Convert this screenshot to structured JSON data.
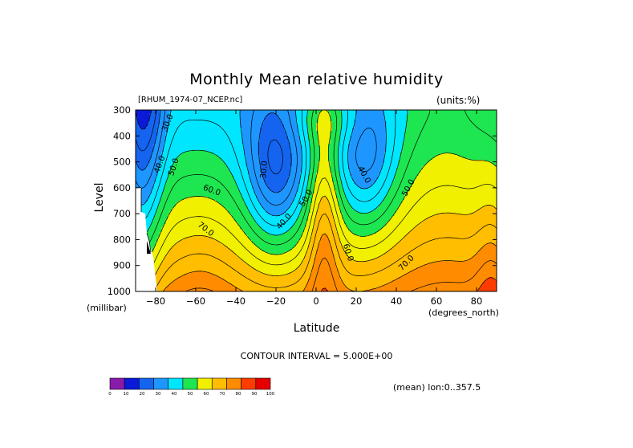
{
  "chart_data": {
    "type": "heatmap",
    "title": "Monthly Mean relative humidity",
    "dataset": "[RHUM_1974-07_NCEP.nc]",
    "units": "(units:%)",
    "xlabel": "Latitude",
    "x_unit": "(degrees_north)",
    "ylabel": "Level",
    "y_unit": "(millibar)",
    "xlim": [
      -90,
      90
    ],
    "ylim": [
      1000,
      300
    ],
    "x_ticks": [
      -80,
      -60,
      -40,
      -20,
      0,
      20,
      40,
      60,
      80
    ],
    "y_ticks": [
      300,
      400,
      500,
      600,
      700,
      800,
      900,
      1000
    ],
    "contour_interval": "CONTOUR INTERVAL = 5.000E+00",
    "mean_note": "(mean) lon:0..357.5",
    "colorbar": {
      "labels": [
        "0",
        "10",
        "20",
        "30",
        "40",
        "50",
        "60",
        "70",
        "80",
        "90",
        "100"
      ],
      "colors": [
        "#8a1aaa",
        "#0a1ad8",
        "#1464f0",
        "#1e96ff",
        "#00e6ff",
        "#1ee650",
        "#f0f000",
        "#ffbe00",
        "#ff8c00",
        "#ff3c00",
        "#e60000"
      ]
    },
    "contour_labels": [
      {
        "text": "30.0",
        "lat": -74,
        "p": 350,
        "angle": -68
      },
      {
        "text": "40.0",
        "lat": -78,
        "p": 510,
        "angle": -70
      },
      {
        "text": "50.0",
        "lat": -71,
        "p": 520,
        "angle": -72
      },
      {
        "text": "60.0",
        "lat": -52,
        "p": 610,
        "angle": 20
      },
      {
        "text": "70.0",
        "lat": -55,
        "p": 760,
        "angle": 38
      },
      {
        "text": "30.0",
        "lat": -26,
        "p": 530,
        "angle": -85
      },
      {
        "text": "40.0",
        "lat": -16,
        "p": 730,
        "angle": -48
      },
      {
        "text": "50.0",
        "lat": -5,
        "p": 640,
        "angle": -60
      },
      {
        "text": "60.0",
        "lat": 16,
        "p": 850,
        "angle": 72
      },
      {
        "text": "40.0",
        "lat": 24,
        "p": 550,
        "angle": 62
      },
      {
        "text": "50.0",
        "lat": 46,
        "p": 600,
        "angle": -62
      },
      {
        "text": "70.0",
        "lat": 45,
        "p": 890,
        "angle": -45
      }
    ]
  }
}
